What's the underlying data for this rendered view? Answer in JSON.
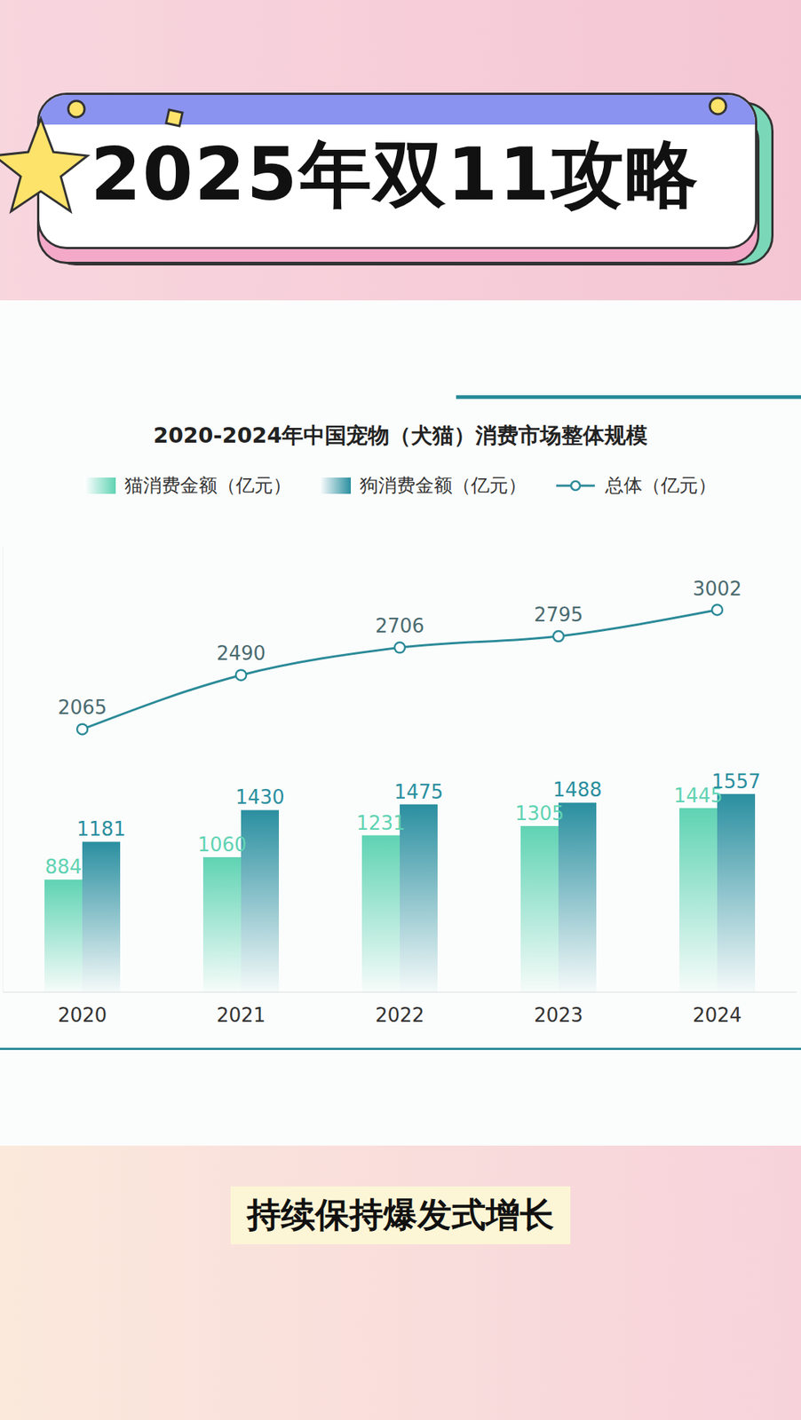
{
  "page": {
    "header": "2025年双11攻略",
    "caption": "持续保持爆发式增长"
  },
  "chart_data": {
    "type": "bar",
    "title": "2020-2024年中国宠物（犬猫）消费市场整体规模",
    "categories": [
      "2020",
      "2021",
      "2022",
      "2023",
      "2024"
    ],
    "series": [
      {
        "name": "猫消费金额（亿元）",
        "type": "bar",
        "color": "#5fd3b3",
        "values": [
          884,
          1060,
          1231,
          1305,
          1445
        ]
      },
      {
        "name": "狗消费金额（亿元）",
        "type": "bar",
        "color": "#2a8fa0",
        "values": [
          1181,
          1430,
          1475,
          1488,
          1557
        ]
      },
      {
        "name": "总体（亿元）",
        "type": "line",
        "color": "#2b8a98",
        "marker": "circle",
        "values": [
          2065,
          2490,
          2706,
          2795,
          3002
        ]
      }
    ],
    "ylim": [
      0,
      3500
    ],
    "yticks": [
      0,
      3500
    ],
    "grid": false,
    "legend": "top",
    "data_labels": true,
    "tick_labels": "x"
  }
}
